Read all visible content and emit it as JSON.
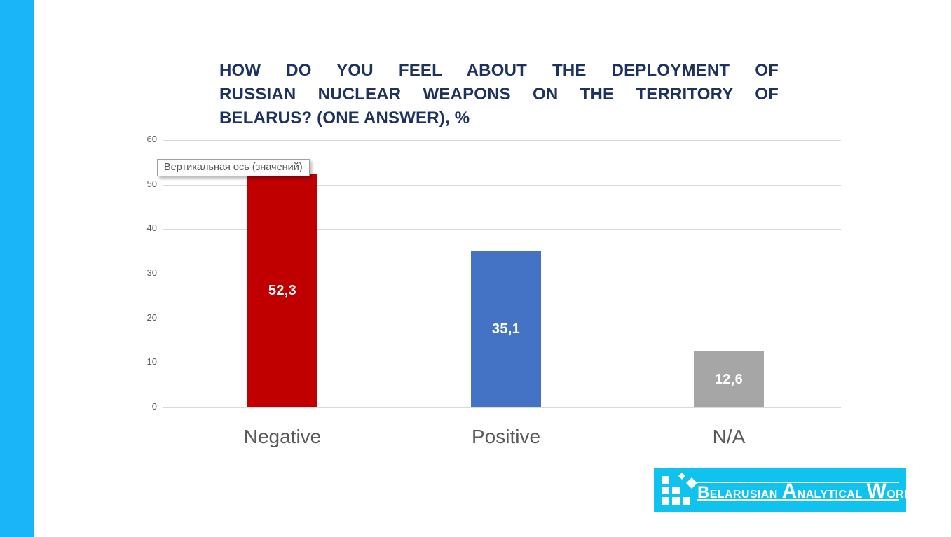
{
  "slide": {
    "accent_stripe_color": "#1ab5f9",
    "background_color": "#ffffff"
  },
  "title": {
    "text": "HOW DO YOU FEEL ABOUT THE DEPLOYMENT OF RUSSIAN NUCLEAR WEAPONS ON THE TERRITORY OF BELARUS? (ONE ANSWER), %",
    "lines": [
      "HOW DO YOU FEEL ABOUT THE DEPLOYMENT OF",
      "RUSSIAN NUCLEAR WEAPONS ON THE TERRITORY OF",
      "BELARUS? (ONE ANSWER), %"
    ],
    "color": "#1d3260"
  },
  "tooltip": {
    "text": "Вертикальная ось (значений)"
  },
  "chart_data": {
    "type": "bar",
    "title": "HOW DO YOU FEEL ABOUT THE DEPLOYMENT OF RUSSIAN NUCLEAR WEAPONS ON THE TERRITORY OF BELARUS? (ONE ANSWER), %",
    "categories": [
      "Negative",
      "Positive",
      "N/A"
    ],
    "values": [
      52.3,
      35.1,
      12.6
    ],
    "value_labels": [
      "52,3",
      "35,1",
      "12,6"
    ],
    "bar_colors": [
      "#c00000",
      "#4472c4",
      "#a6a6a6"
    ],
    "value_label_color": "#ffffff",
    "xlabel": "",
    "ylabel": "",
    "ylim": [
      0,
      60
    ],
    "yticks": [
      0,
      10,
      20,
      30,
      40,
      50,
      60
    ],
    "grid": true,
    "gridline_color": "#d9d9d9",
    "axis_text_color": "#595959",
    "legend": false
  },
  "logo": {
    "background_color": "#10c3ee",
    "name": "Belarusian Analytical Workroom",
    "words": [
      {
        "initial": "B",
        "rest": "ELARUSIAN"
      },
      {
        "initial": "A",
        "rest": "NALYTICAL"
      },
      {
        "initial": "W",
        "rest": "ORKROOM"
      }
    ]
  }
}
